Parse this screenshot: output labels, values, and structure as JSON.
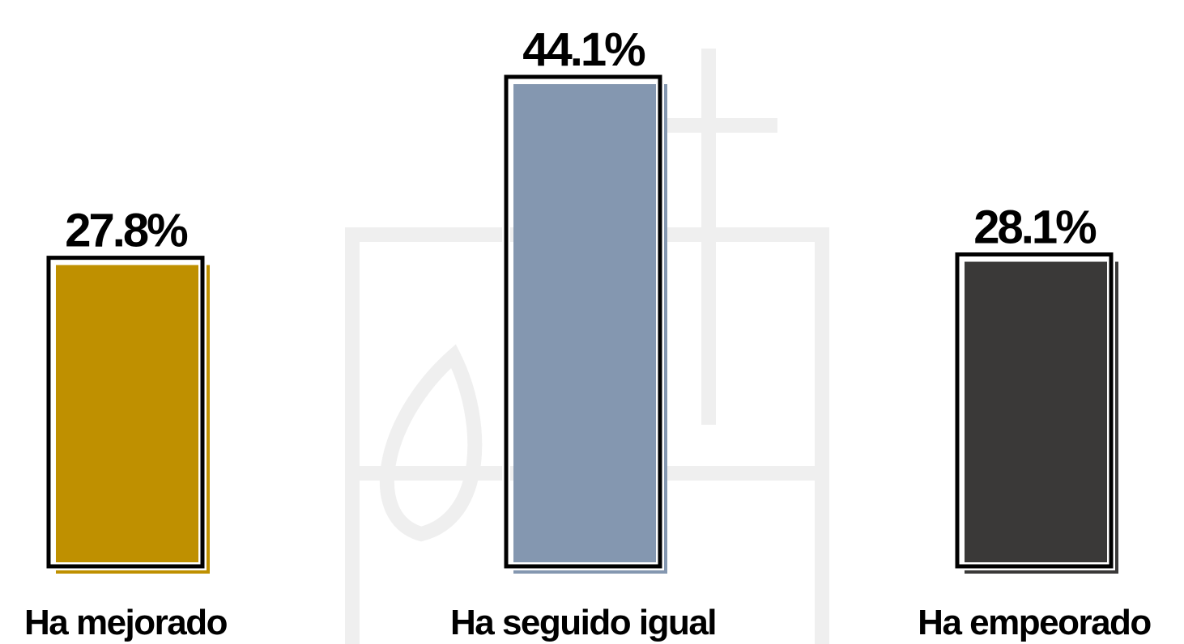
{
  "chart_data": {
    "type": "bar",
    "categories": [
      "Ha mejorado",
      "Ha seguido igual",
      "Ha empeorado"
    ],
    "values": [
      27.8,
      44.1,
      28.1
    ],
    "value_labels": [
      "27.8%",
      "44.1%",
      "28.1%"
    ],
    "colors": [
      "#bf9000",
      "#8497b0",
      "#3a3938"
    ]
  }
}
